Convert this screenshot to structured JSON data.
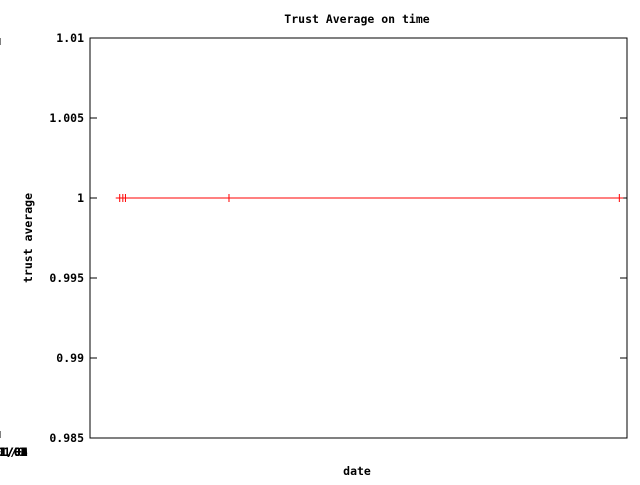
{
  "chart_data": {
    "type": "line",
    "title": "Trust Average on time",
    "xlabel": "date",
    "ylabel": "trust average",
    "xlim": [
      "2000-01-01",
      "2009-01-01"
    ],
    "ylim": [
      0.985,
      1.01
    ],
    "x_ticks": [
      "01/01/00",
      "01/01/01",
      "01/01/02",
      "01/01/03",
      "01/01/04",
      "01/01/05",
      "01/01/06",
      "01/01/07",
      "01/01/08",
      "01/01/0"
    ],
    "y_ticks": [
      "0.985",
      "0.99",
      "0.995",
      "1",
      "1.005",
      "1.01"
    ],
    "grid": false,
    "legend": "none",
    "series": [
      {
        "color": "#ff0000",
        "x": [
          "2000-07-01",
          "2000-07-20",
          "2000-08-05",
          "2002-05-01",
          "2008-11-15"
        ],
        "y": [
          1,
          1,
          1,
          1,
          1
        ]
      }
    ]
  }
}
